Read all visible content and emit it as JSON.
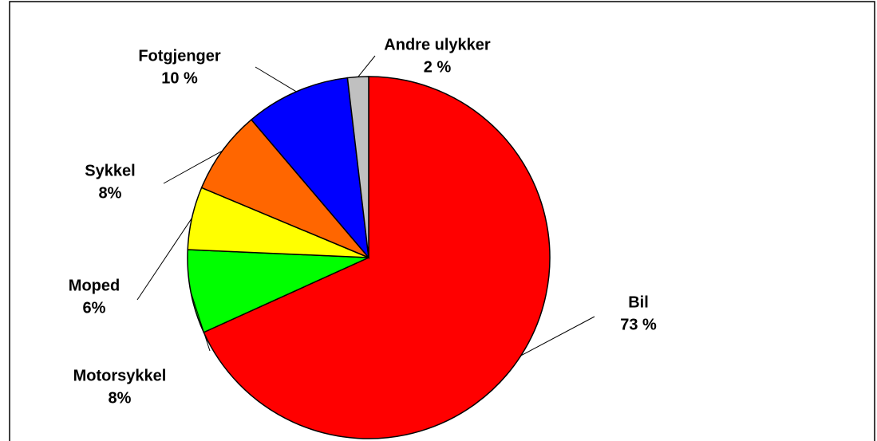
{
  "chart_data": {
    "type": "pie",
    "categories": [
      "Bil",
      "Motorsykkel",
      "Moped",
      "Sykkel",
      "Fotgjenger",
      "Andre ulykker"
    ],
    "values": [
      73,
      8,
      6,
      8,
      10,
      2
    ],
    "value_labels": [
      "73 %",
      "8%",
      "6%",
      "8%",
      "10 %",
      "2 %"
    ],
    "colors": [
      "#ff0000",
      "#00ff00",
      "#ffff00",
      "#ff6600",
      "#0000ff",
      "#c0c0c0"
    ]
  }
}
